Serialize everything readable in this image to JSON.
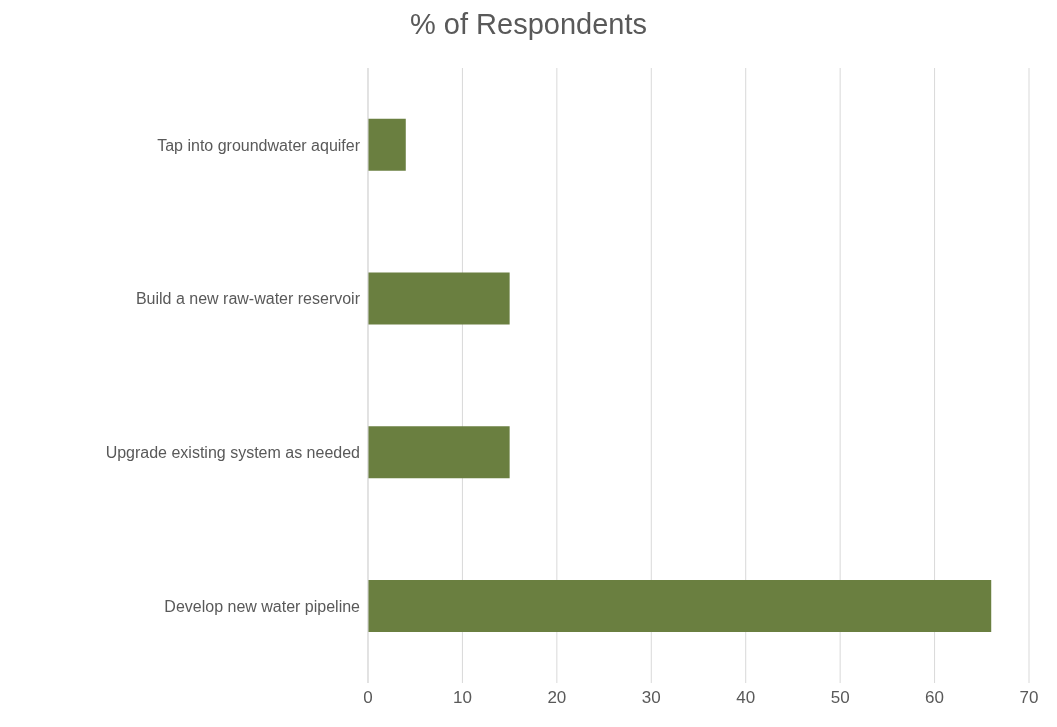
{
  "chart_data": {
    "type": "bar",
    "orientation": "horizontal",
    "title": "% of Respondents",
    "categories": [
      "Tap into groundwater aquifer",
      "Build a new raw-water reservoir",
      "Upgrade existing system as needed",
      "Develop new water pipeline"
    ],
    "values": [
      4,
      15,
      15,
      66
    ],
    "color": "#6a7f40",
    "xlim": [
      0,
      70
    ],
    "xticks": [
      0,
      10,
      20,
      30,
      40,
      50,
      60,
      70
    ],
    "grid": "x"
  }
}
